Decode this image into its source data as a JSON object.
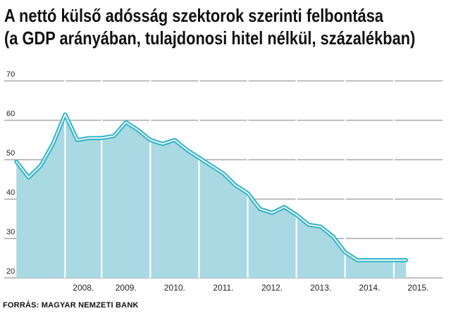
{
  "title_line1": "A nettó külső adósság szektorok szerinti felbontása",
  "title_line2": "(a GDP arányában, tulajdonosi hitel nélkül, százalékban)",
  "source": "FORRÁS: MAGYAR NEMZETI BANK",
  "colors": {
    "line": "#3ab6c8",
    "fill": "#a9d9e2",
    "grid": "#555555",
    "text": "#222222"
  },
  "chart_data": {
    "type": "area",
    "ylim": [
      20,
      70
    ],
    "yticks": [
      20,
      30,
      40,
      50,
      60,
      70
    ],
    "year_labels": [
      "2008.",
      "2009.",
      "2010.",
      "2011.",
      "2012.",
      "2013.",
      "2014.",
      "2015."
    ],
    "xlim": [
      2007.0,
      2016.0
    ],
    "separators": [
      2008.25,
      2009.0,
      2010.0,
      2011.0,
      2012.0,
      2013.0,
      2014.0,
      2015.0
    ],
    "grid": true,
    "series": [
      {
        "x": [
          2007.25,
          2007.5,
          2007.75,
          2008.0,
          2008.25,
          2008.5,
          2008.75,
          2009.0,
          2009.25,
          2009.5,
          2009.75,
          2010.0,
          2010.25,
          2010.5,
          2010.75,
          2011.0,
          2011.25,
          2011.5,
          2011.75,
          2012.0,
          2012.25,
          2012.5,
          2012.75,
          2013.0,
          2013.25,
          2013.5,
          2013.75,
          2014.0,
          2014.25,
          2014.5,
          2014.75,
          2015.0,
          2015.25
        ],
        "values": [
          49.5,
          45.5,
          48.5,
          54.0,
          61.5,
          55.0,
          55.5,
          55.5,
          56.0,
          59.5,
          57.5,
          55.0,
          54.0,
          55.0,
          52.5,
          50.5,
          48.5,
          46.5,
          43.5,
          41.5,
          37.5,
          36.5,
          38.0,
          36.0,
          33.5,
          33.0,
          30.5,
          26.5,
          24.5,
          24.5,
          24.5,
          24.5,
          24.5
        ]
      }
    ]
  }
}
